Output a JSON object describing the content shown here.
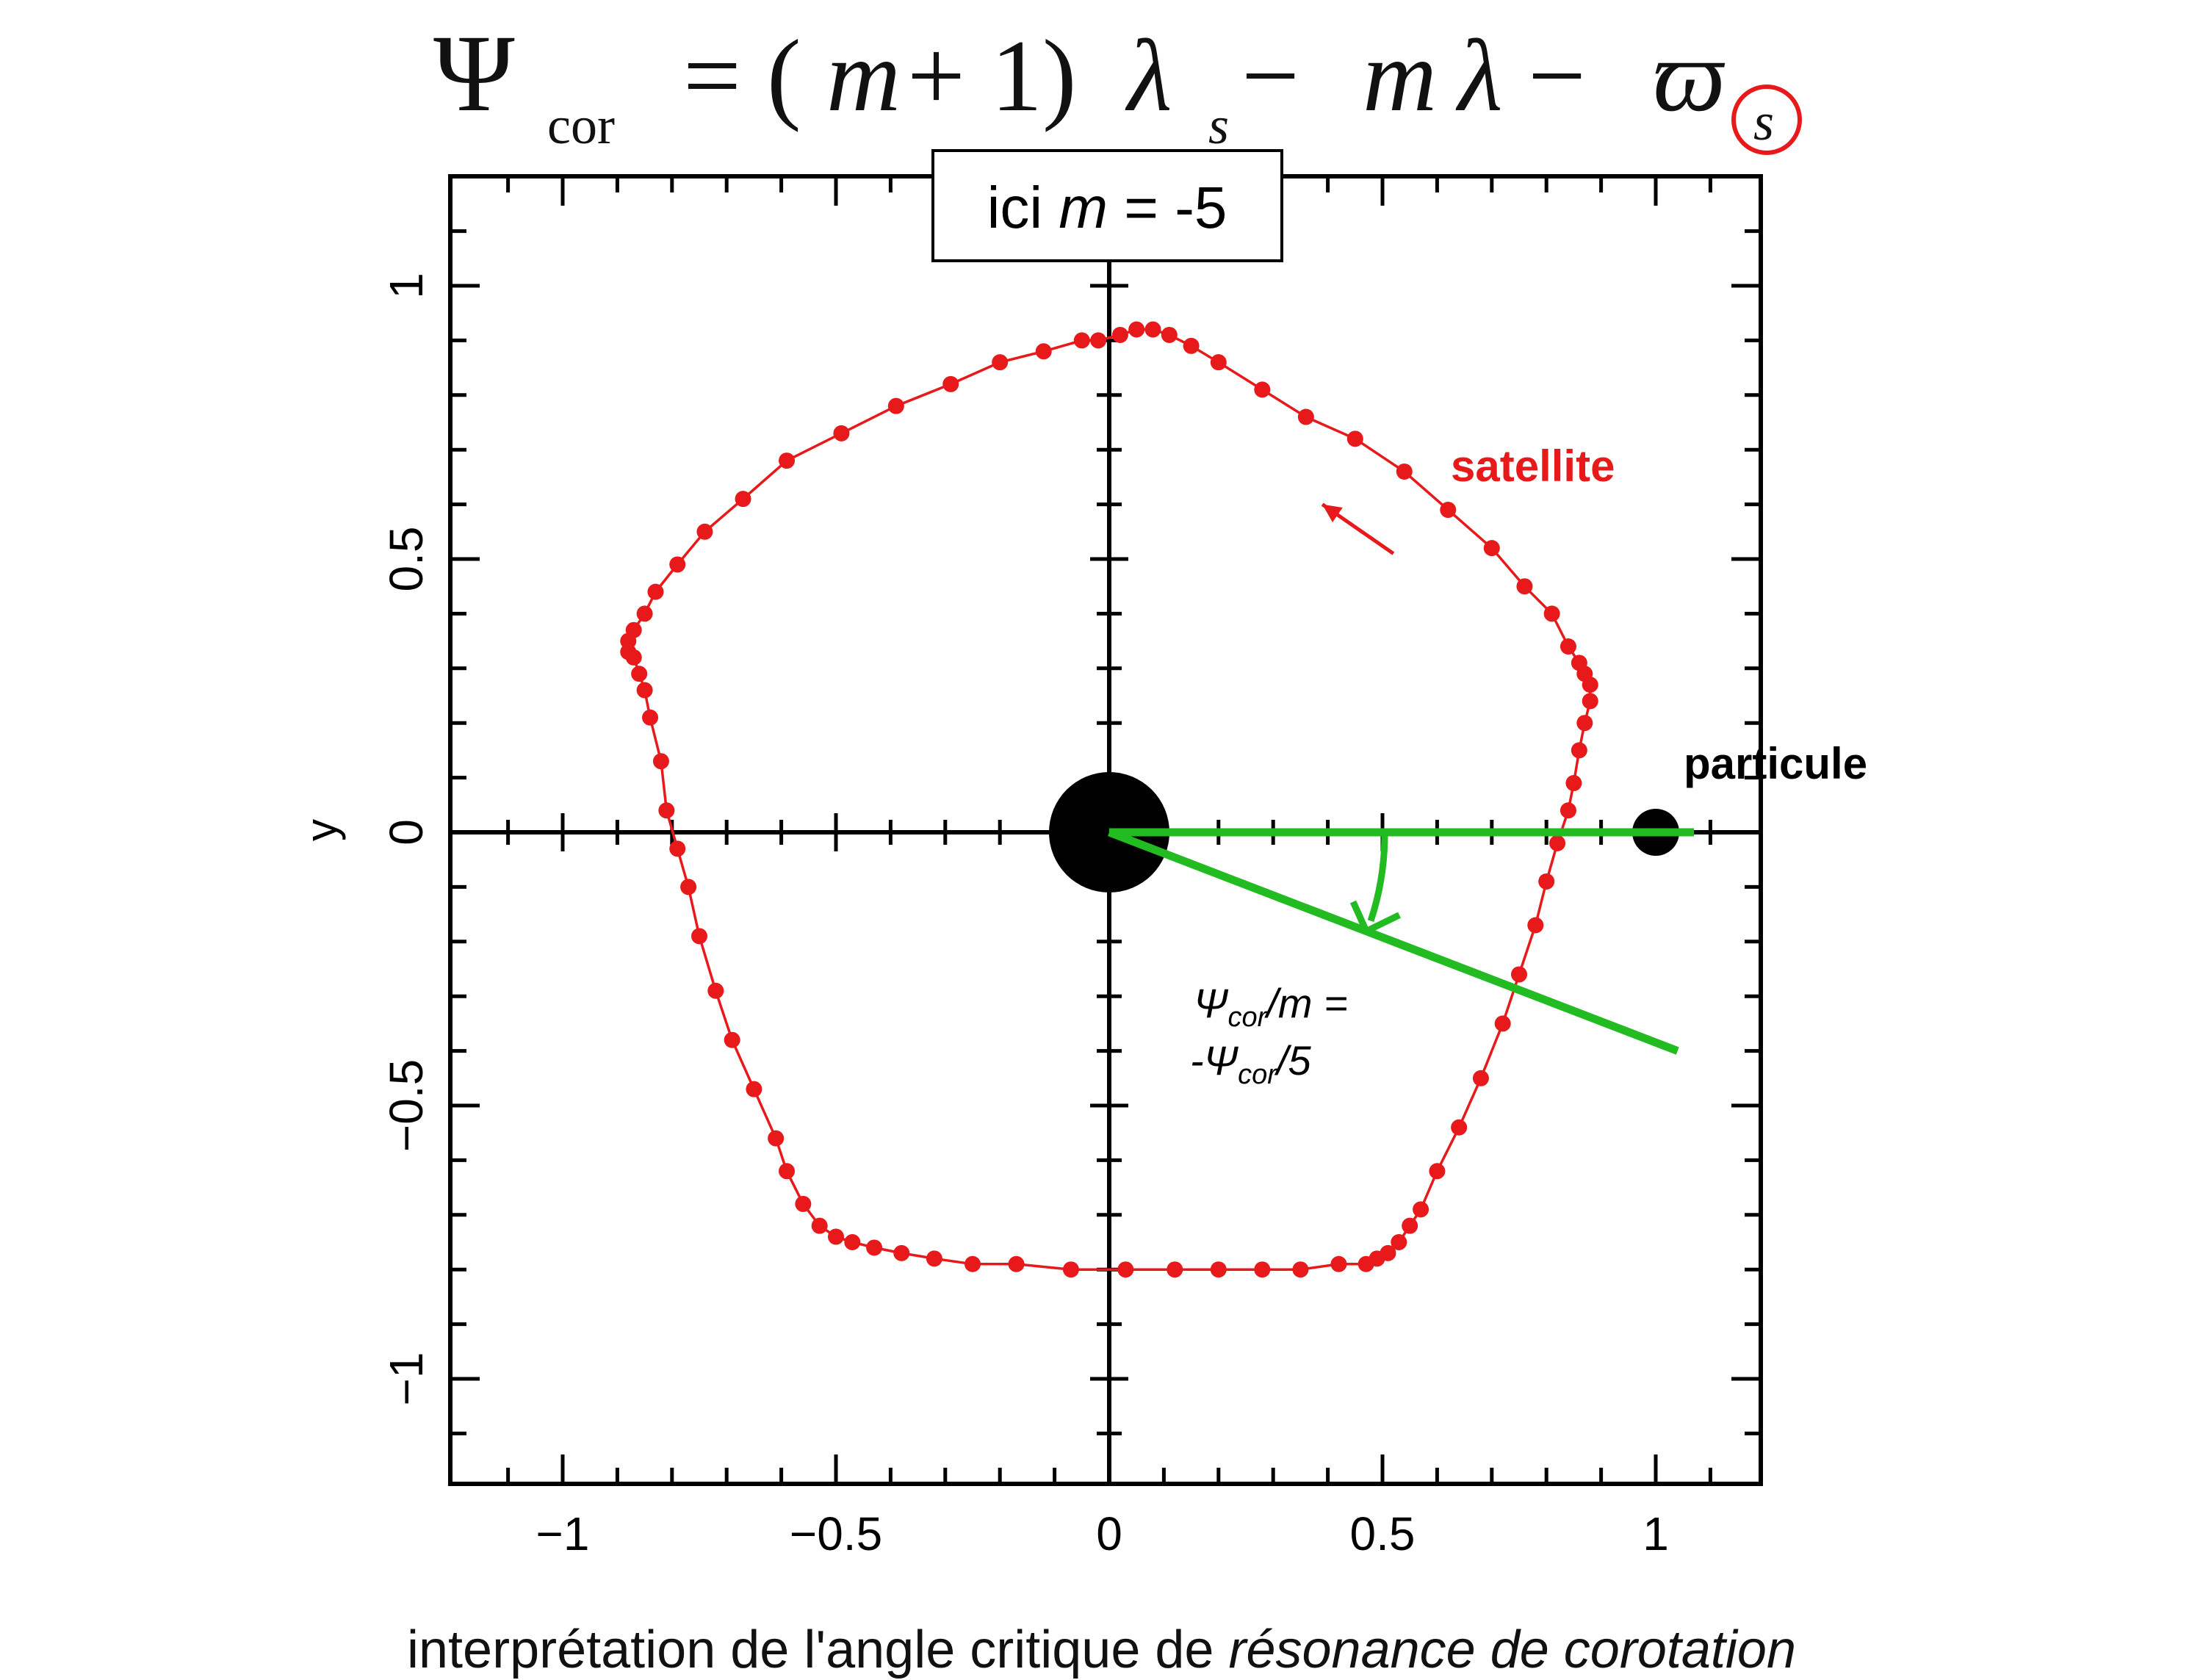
{
  "formula": {
    "psi": "Ψ",
    "sub_cor": "cor",
    "eq": "= (",
    "m1": "m",
    "plus1": " + 1)",
    "lam1": "λ",
    "sub_s1": "s",
    "minus1": " − ",
    "m2": "m",
    "lam2": "λ",
    "minus2": " − ",
    "varpi": "ϖ",
    "sub_s2": "s"
  },
  "colors": {
    "orbit": "#e8191b",
    "angle": "#22bb22",
    "axis": "#000000",
    "highlight_circle": "#e8191b"
  },
  "chart_data": {
    "type": "scatter",
    "xlabel": "",
    "ylabel": "y",
    "xlim": [
      -1.2,
      1.2
    ],
    "ylim": [
      -1.2,
      1.2
    ],
    "xticks": [
      -1,
      -0.5,
      0,
      0.5,
      1
    ],
    "xticklabels": [
      "−1",
      "−0.5",
      "0",
      "0.5",
      "1"
    ],
    "yticks": [
      -1,
      -0.5,
      0,
      0.5,
      1
    ],
    "yticklabels": [
      "−1",
      "−0.5",
      "0",
      "0.5",
      "1"
    ],
    "annotation_box": {
      "prefix": "ici ",
      "var": "m",
      "suffix": " = -5"
    },
    "satellite_label": "satellite",
    "particle_label": "particule",
    "angle_label_line1": {
      "psi": "Ψ",
      "sub": "cor",
      "rest": "/m ="
    },
    "angle_label_line2": {
      "pre": "-Ψ",
      "sub": "cor",
      "rest": "/5"
    },
    "central_body": {
      "x": 0,
      "y": 0
    },
    "particle": {
      "x": 1.0,
      "y": 0
    },
    "angle_line_end": {
      "x": 1.04,
      "y": -0.4
    },
    "ref_line_end": {
      "x": 1.07,
      "y": 0
    },
    "satellite_arrow": {
      "from": [
        0.52,
        0.51
      ],
      "to": [
        0.39,
        0.6
      ]
    },
    "series": [
      {
        "x": [
          0.02,
          0.05,
          0.08,
          0.11,
          0.15,
          0.2,
          0.28,
          0.36,
          0.45,
          0.54,
          0.62,
          0.7,
          0.76,
          0.81,
          0.84,
          0.86,
          0.87,
          0.88,
          0.88,
          0.87,
          0.86,
          0.85,
          0.84,
          0.82,
          0.8,
          0.78,
          0.75,
          0.72,
          0.68,
          0.64,
          0.6,
          0.57,
          0.55,
          0.53,
          0.51,
          0.49,
          0.47,
          0.42,
          0.35,
          0.28,
          0.2,
          0.12,
          0.03,
          -0.07,
          -0.17,
          -0.25,
          -0.32,
          -0.38,
          -0.43,
          -0.47,
          -0.5,
          -0.53,
          -0.56,
          -0.59,
          -0.61,
          -0.65,
          -0.69,
          -0.72,
          -0.75,
          -0.77,
          -0.79,
          -0.81,
          -0.82,
          -0.84,
          -0.85,
          -0.86,
          -0.87,
          -0.88,
          -0.88,
          -0.87,
          -0.85,
          -0.83,
          -0.79,
          -0.74,
          -0.67,
          -0.59,
          -0.49,
          -0.39,
          -0.29,
          -0.2,
          -0.12,
          -0.05,
          -0.02
        ],
        "y": [
          0.91,
          0.92,
          0.92,
          0.91,
          0.89,
          0.86,
          0.81,
          0.76,
          0.72,
          0.66,
          0.59,
          0.52,
          0.45,
          0.4,
          0.34,
          0.31,
          0.29,
          0.27,
          0.24,
          0.2,
          0.15,
          0.09,
          0.04,
          -0.02,
          -0.09,
          -0.17,
          -0.26,
          -0.35,
          -0.45,
          -0.54,
          -0.62,
          -0.69,
          -0.72,
          -0.75,
          -0.77,
          -0.78,
          -0.79,
          -0.79,
          -0.8,
          -0.8,
          -0.8,
          -0.8,
          -0.8,
          -0.8,
          -0.79,
          -0.79,
          -0.78,
          -0.77,
          -0.76,
          -0.75,
          -0.74,
          -0.72,
          -0.68,
          -0.62,
          -0.56,
          -0.47,
          -0.38,
          -0.29,
          -0.19,
          -0.1,
          -0.03,
          0.04,
          0.13,
          0.21,
          0.26,
          0.29,
          0.32,
          0.33,
          0.35,
          0.37,
          0.4,
          0.44,
          0.49,
          0.55,
          0.61,
          0.68,
          0.73,
          0.78,
          0.82,
          0.86,
          0.88,
          0.9,
          0.9
        ]
      }
    ]
  },
  "caption": {
    "normal": "interprétation de l'angle critique de ",
    "italic": "résonance de corotation"
  }
}
